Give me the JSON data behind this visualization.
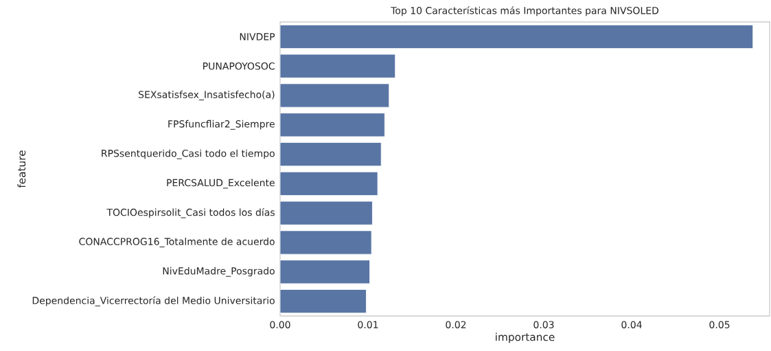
{
  "chart_data": {
    "type": "bar",
    "orientation": "horizontal",
    "title": "Top 10 Características más Importantes para NIVSOLED",
    "xlabel": "importance",
    "ylabel": "feature",
    "categories": [
      "NIVDEP",
      "PUNAPOYOSOC",
      "SEXsatisfsex_Insatisfecho(a)",
      "FPSfuncfliar2_Siempre",
      "RPSsentquerido_Casi todo el tiempo",
      "PERCSALUD_Excelente",
      "TOCIOespirsolit_Casi todos los días",
      "CONACCPROG16_Totalmente de acuerdo",
      "NivEduMadre_Posgrado",
      "Dependencia_Vicerrectoría del Medio Universitario"
    ],
    "values": [
      0.0538,
      0.0131,
      0.0124,
      0.0119,
      0.0115,
      0.0111,
      0.0105,
      0.0104,
      0.0102,
      0.0098
    ],
    "color": "#5975a4",
    "xlim": [
      0,
      0.0557
    ],
    "xticks": [
      {
        "value": 0,
        "label": "0.00"
      },
      {
        "value": 0.01,
        "label": "0.01"
      },
      {
        "value": 0.02,
        "label": "0.02"
      },
      {
        "value": 0.03,
        "label": "0.03"
      },
      {
        "value": 0.04,
        "label": "0.04"
      },
      {
        "value": 0.05,
        "label": "0.05"
      }
    ],
    "grid": false
  }
}
